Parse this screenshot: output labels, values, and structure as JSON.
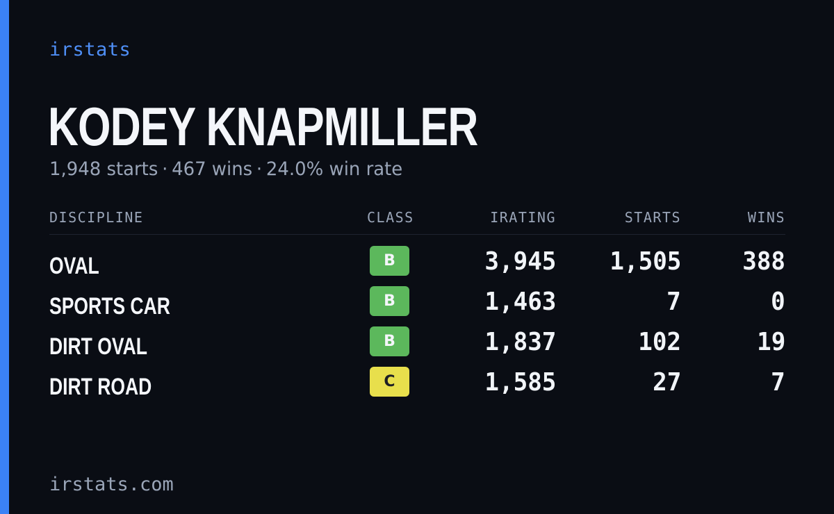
{
  "brand": "irstats",
  "player": {
    "name": "KODEY KNAPMILLER",
    "starts_text": "1,948 starts",
    "wins_text": "467 wins",
    "win_rate_text": "24.0% win rate",
    "separator": "·"
  },
  "table": {
    "headers": {
      "discipline": "DISCIPLINE",
      "class": "CLASS",
      "irating": "IRATING",
      "starts": "STARTS",
      "wins": "WINS"
    },
    "rows": [
      {
        "discipline": "OVAL",
        "class": "B",
        "irating": "3,945",
        "starts": "1,505",
        "wins": "388"
      },
      {
        "discipline": "SPORTS CAR",
        "class": "B",
        "irating": "1,463",
        "starts": "7",
        "wins": "0"
      },
      {
        "discipline": "DIRT OVAL",
        "class": "B",
        "irating": "1,837",
        "starts": "102",
        "wins": "19"
      },
      {
        "discipline": "DIRT ROAD",
        "class": "C",
        "irating": "1,585",
        "starts": "27",
        "wins": "7"
      }
    ]
  },
  "footer": "irstats.com",
  "colors": {
    "background": "#0a0d14",
    "accent": "#3b82f6",
    "class_b": "#5cb85c",
    "class_c": "#e8df4c"
  }
}
